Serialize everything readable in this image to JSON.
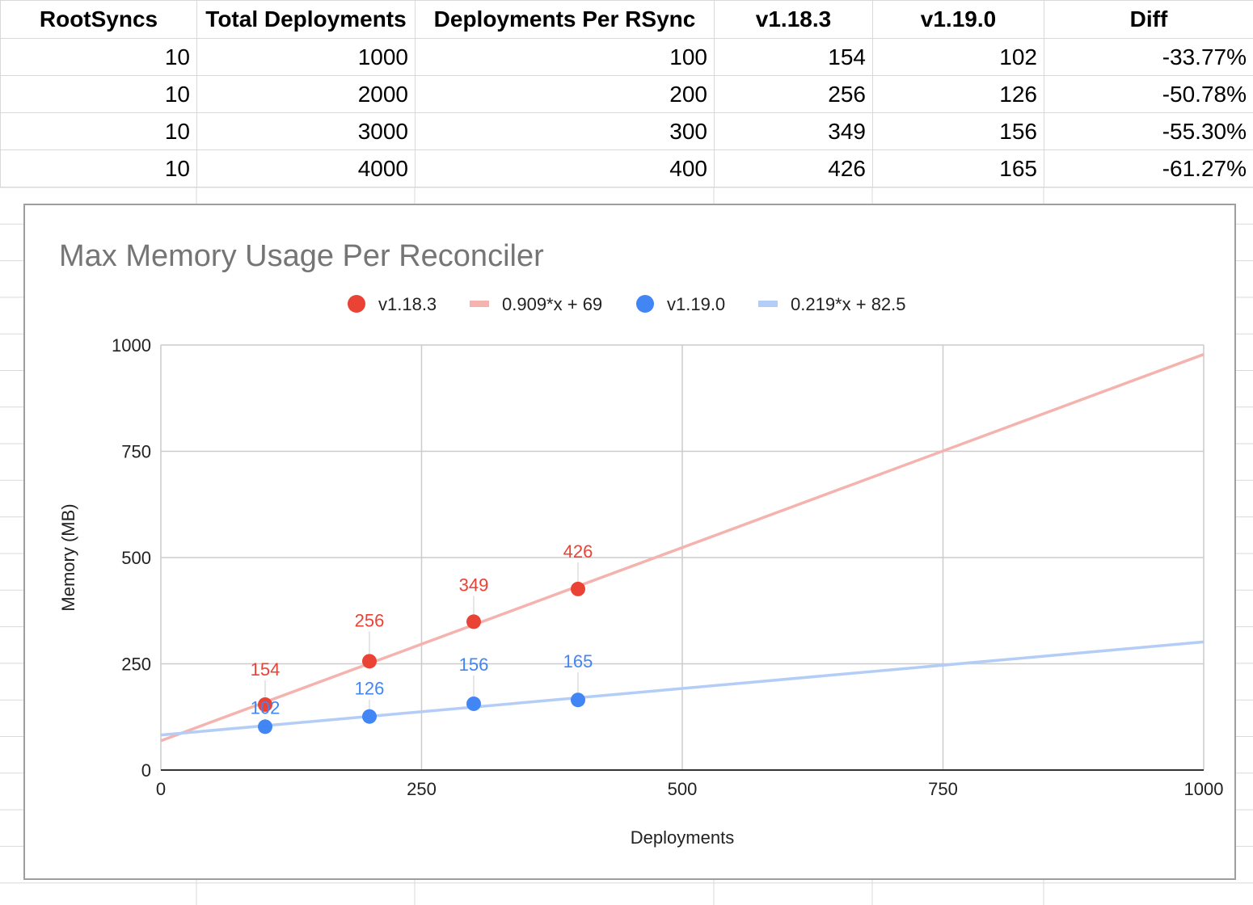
{
  "sheet": {
    "headers": [
      "RootSyncs",
      "Total Deployments",
      "Deployments Per RSync",
      "v1.18.3",
      "v1.19.0",
      "Diff"
    ],
    "rows": [
      [
        "10",
        "1000",
        "100",
        "154",
        "102",
        "-33.77%"
      ],
      [
        "10",
        "2000",
        "200",
        "256",
        "126",
        "-50.78%"
      ],
      [
        "10",
        "3000",
        "300",
        "349",
        "156",
        "-55.30%"
      ],
      [
        "10",
        "4000",
        "400",
        "426",
        "165",
        "-61.27%"
      ]
    ]
  },
  "chart_data": {
    "type": "scatter",
    "title": "Max Memory Usage Per Reconciler",
    "xlabel": "Deployments",
    "ylabel": "Memory (MB)",
    "xlim": [
      0,
      1000
    ],
    "ylim": [
      0,
      1000
    ],
    "x_ticks": [
      "0",
      "250",
      "500",
      "750",
      "1000"
    ],
    "y_ticks": [
      "0",
      "250",
      "500",
      "750",
      "1000"
    ],
    "grid": true,
    "legend_position": "top",
    "series": [
      {
        "name": "v1.18.3",
        "color": "#ea4335",
        "x": [
          100,
          200,
          300,
          400
        ],
        "y": [
          154,
          256,
          349,
          426
        ],
        "labels": [
          "154",
          "256",
          "349",
          "426"
        ]
      },
      {
        "name": "v1.19.0",
        "color": "#4285f4",
        "x": [
          100,
          200,
          300,
          400
        ],
        "y": [
          102,
          126,
          156,
          165
        ],
        "labels": [
          "102",
          "126",
          "156",
          "165"
        ]
      }
    ],
    "trendlines": [
      {
        "name": "0.909*x + 69",
        "color": "#f4b3ae",
        "slope": 0.909,
        "intercept": 69
      },
      {
        "name": "0.219*x + 82.5",
        "color": "#b3cdf7",
        "slope": 0.219,
        "intercept": 82.5
      }
    ]
  }
}
